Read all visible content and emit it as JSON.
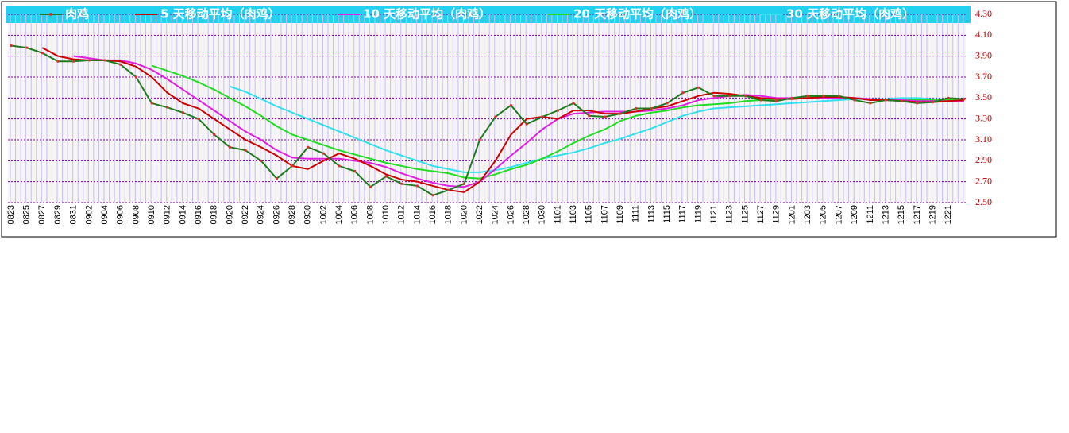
{
  "chart_data": {
    "type": "line",
    "categories": [
      "0823",
      "0825",
      "0827",
      "0829",
      "0831",
      "0902",
      "0904",
      "0906",
      "0908",
      "0910",
      "0912",
      "0914",
      "0916",
      "0918",
      "0920",
      "0922",
      "0924",
      "0926",
      "0928",
      "0930",
      "1002",
      "1004",
      "1006",
      "1008",
      "1010",
      "1012",
      "1014",
      "1016",
      "1018",
      "1020",
      "1022",
      "1024",
      "1026",
      "1028",
      "1030",
      "1101",
      "1103",
      "1105",
      "1107",
      "1109",
      "1111",
      "1113",
      "1115",
      "1117",
      "1119",
      "1121",
      "1123",
      "1125",
      "1127",
      "1129",
      "1201",
      "1203",
      "1205",
      "1207",
      "1209",
      "1211",
      "1213",
      "1215",
      "1217",
      "1219",
      "1221",
      null
    ],
    "series": [
      {
        "name": "肉鸡",
        "color": "#1e7b1e",
        "values": [
          4.0,
          3.98,
          3.93,
          3.85,
          3.85,
          3.86,
          3.86,
          3.82,
          3.7,
          3.45,
          3.41,
          3.36,
          3.3,
          3.15,
          3.03,
          3.0,
          2.9,
          2.73,
          2.85,
          3.03,
          2.97,
          2.85,
          2.8,
          2.65,
          2.75,
          2.68,
          2.66,
          2.57,
          2.62,
          2.68,
          3.1,
          3.32,
          3.43,
          3.25,
          3.32,
          3.38,
          3.45,
          3.33,
          3.32,
          3.35,
          3.4,
          3.4,
          3.45,
          3.55,
          3.6,
          3.52,
          3.52,
          3.52,
          3.48,
          3.47,
          3.5,
          3.52,
          3.52,
          3.52,
          3.48,
          3.45,
          3.48,
          3.47,
          3.45,
          3.46,
          3.5,
          3.49
        ]
      },
      {
        "name": "5 天移动平均（肉鸡）",
        "color": "#cc0000",
        "values": [
          null,
          null,
          3.98,
          3.9,
          3.87,
          3.86,
          3.86,
          3.85,
          3.8,
          3.7,
          3.55,
          3.45,
          3.4,
          3.3,
          3.2,
          3.1,
          3.03,
          2.95,
          2.85,
          2.82,
          2.9,
          2.97,
          2.92,
          2.85,
          2.77,
          2.72,
          2.7,
          2.66,
          2.62,
          2.6,
          2.7,
          2.9,
          3.15,
          3.3,
          3.32,
          3.3,
          3.38,
          3.38,
          3.35,
          3.35,
          3.37,
          3.4,
          3.42,
          3.47,
          3.52,
          3.55,
          3.54,
          3.52,
          3.5,
          3.49,
          3.49,
          3.5,
          3.51,
          3.51,
          3.5,
          3.48,
          3.48,
          3.47,
          3.46,
          3.46,
          3.47,
          3.48
        ]
      },
      {
        "name": "10 天移动平均（肉鸡）",
        "color": "#e020e0",
        "values": [
          null,
          null,
          null,
          null,
          3.9,
          3.88,
          3.86,
          3.86,
          3.83,
          3.77,
          3.68,
          3.58,
          3.48,
          3.38,
          3.28,
          3.18,
          3.1,
          3.0,
          2.93,
          2.92,
          2.92,
          2.92,
          2.9,
          2.88,
          2.84,
          2.78,
          2.73,
          2.69,
          2.66,
          2.65,
          2.7,
          2.82,
          2.95,
          3.07,
          3.2,
          3.3,
          3.35,
          3.36,
          3.37,
          3.37,
          3.37,
          3.38,
          3.4,
          3.43,
          3.48,
          3.5,
          3.52,
          3.53,
          3.52,
          3.5,
          3.5,
          3.5,
          3.5,
          3.5,
          3.5,
          3.49,
          3.48,
          3.48,
          3.47,
          3.47,
          3.47,
          3.47
        ]
      },
      {
        "name": "20 天移动平均（肉鸡）",
        "color": "#22dd22",
        "values": [
          null,
          null,
          null,
          null,
          null,
          null,
          null,
          null,
          null,
          3.81,
          3.76,
          3.71,
          3.65,
          3.58,
          3.5,
          3.42,
          3.33,
          3.23,
          3.15,
          3.1,
          3.05,
          3.0,
          2.96,
          2.92,
          2.88,
          2.85,
          2.82,
          2.8,
          2.78,
          2.74,
          2.73,
          2.77,
          2.82,
          2.86,
          2.92,
          2.99,
          3.07,
          3.14,
          3.2,
          3.28,
          3.33,
          3.36,
          3.38,
          3.41,
          3.43,
          3.44,
          3.45,
          3.47,
          3.48,
          3.49,
          3.5,
          3.51,
          3.51,
          3.51,
          3.5,
          3.49,
          3.48,
          3.48,
          3.48,
          3.48,
          3.48,
          3.48
        ]
      },
      {
        "name": "30 天移动平均（肉鸡）",
        "color": "#33e0f0",
        "values": [
          null,
          null,
          null,
          null,
          null,
          null,
          null,
          null,
          null,
          null,
          null,
          null,
          null,
          null,
          3.61,
          3.56,
          3.49,
          3.42,
          3.36,
          3.3,
          3.24,
          3.18,
          3.12,
          3.06,
          3.0,
          2.95,
          2.9,
          2.85,
          2.82,
          2.79,
          2.79,
          2.81,
          2.84,
          2.88,
          2.92,
          2.95,
          2.98,
          3.02,
          3.07,
          3.11,
          3.16,
          3.21,
          3.27,
          3.33,
          3.37,
          3.4,
          3.41,
          3.42,
          3.43,
          3.44,
          3.45,
          3.46,
          3.47,
          3.48,
          3.49,
          3.49,
          3.49,
          3.5,
          3.5,
          3.49,
          3.49,
          3.49
        ]
      }
    ],
    "ylim": [
      2.5,
      4.3
    ],
    "yticks": [
      {
        "value": 2.5,
        "label": "2.50"
      },
      {
        "value": 2.7,
        "label": "2.70"
      },
      {
        "value": 2.9,
        "label": "2.90"
      },
      {
        "value": 3.1,
        "label": "3.10"
      },
      {
        "value": 3.3,
        "label": "3.30"
      },
      {
        "value": 3.5,
        "label": "3.50"
      },
      {
        "value": 3.7,
        "label": "3.70"
      },
      {
        "value": 3.9,
        "label": "3.90"
      },
      {
        "value": 4.1,
        "label": "4.10"
      },
      {
        "value": 4.3,
        "label": "4.30"
      }
    ],
    "grid": true,
    "legend_position": "top",
    "y_axis_side": "right"
  }
}
